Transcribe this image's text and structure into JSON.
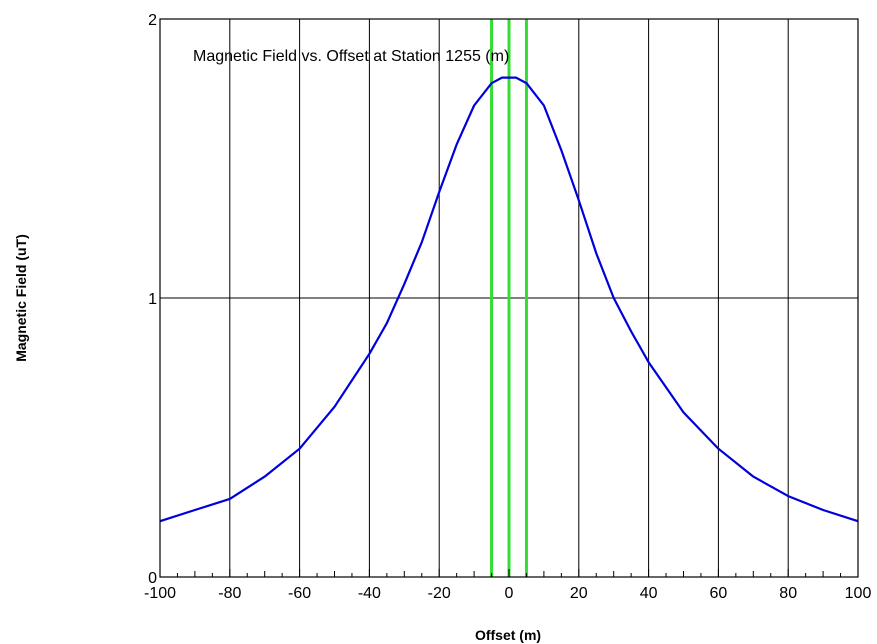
{
  "chart_data": {
    "type": "line",
    "title": "Magnetic Field vs. Offset at Station 1255 (m)",
    "xlabel": "Offset (m)",
    "ylabel": "Magnetic Field (uT)",
    "xlim": [
      -100,
      100
    ],
    "ylim": [
      0,
      2
    ],
    "x_ticks": [
      -100,
      -80,
      -60,
      -40,
      -20,
      0,
      20,
      40,
      60,
      80,
      100
    ],
    "y_ticks": [
      0,
      1,
      2
    ],
    "x_tick_labels": [
      "-100",
      "-80",
      "-60",
      "-40",
      "-20",
      "0",
      "20",
      "40",
      "60",
      "80",
      "100"
    ],
    "y_tick_labels": [
      "0",
      "1",
      "2"
    ],
    "grid": {
      "x": true,
      "y": true
    },
    "series": [
      {
        "color": "#0000dd",
        "x": [
          -100,
          -90,
          -80,
          -70,
          -60,
          -50,
          -40,
          -35,
          -30,
          -25,
          -20,
          -15,
          -10,
          -5,
          -2,
          0,
          2,
          5,
          10,
          15,
          20,
          25,
          30,
          35,
          40,
          50,
          60,
          70,
          80,
          90,
          100
        ],
        "y": [
          0.2,
          0.24,
          0.28,
          0.36,
          0.46,
          0.61,
          0.8,
          0.91,
          1.05,
          1.2,
          1.38,
          1.55,
          1.69,
          1.77,
          1.79,
          1.79,
          1.79,
          1.77,
          1.69,
          1.53,
          1.35,
          1.16,
          1.0,
          0.88,
          0.77,
          0.59,
          0.46,
          0.36,
          0.29,
          0.24,
          0.2
        ]
      }
    ],
    "vertical_markers": {
      "color": "#33dd33",
      "x": [
        -5,
        0,
        5
      ]
    }
  }
}
